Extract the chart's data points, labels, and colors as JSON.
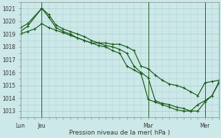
{
  "background_color": "#cce8e8",
  "grid_color": "#aacccc",
  "line_color": "#1a5c1a",
  "xlabel": "Pression niveau de la mer( hPa )",
  "ylim": [
    1012.5,
    1021.5
  ],
  "yticks": [
    1013,
    1014,
    1015,
    1016,
    1017,
    1018,
    1019,
    1020,
    1021
  ],
  "xtick_labels": [
    "Lun",
    "Jeu",
    "Mar",
    "Mer"
  ],
  "xtick_positions": [
    0,
    3,
    18,
    26
  ],
  "series1_x": [
    0,
    1,
    3,
    4,
    5,
    6,
    7,
    8,
    9,
    10,
    11,
    12,
    13,
    14,
    15,
    16,
    17,
    18,
    19,
    20,
    21,
    22,
    23,
    24,
    25,
    26,
    27,
    28
  ],
  "series1_y": [
    1019.5,
    1019.8,
    1021.0,
    1020.5,
    1019.7,
    1019.4,
    1019.2,
    1019.0,
    1018.8,
    1018.5,
    1018.3,
    1018.3,
    1018.2,
    1018.2,
    1018.0,
    1017.7,
    1016.5,
    1016.3,
    1015.8,
    1015.4,
    1015.1,
    1015.0,
    1014.8,
    1014.5,
    1014.2,
    1015.2,
    1015.3,
    1015.4
  ],
  "series2_x": [
    0,
    1,
    3,
    4,
    5,
    6,
    7,
    8,
    9,
    10,
    11,
    12,
    13,
    14,
    15,
    16,
    17,
    18,
    19,
    20,
    21,
    22,
    23,
    24,
    25,
    26,
    27,
    28
  ],
  "series2_y": [
    1019.2,
    1019.6,
    1021.0,
    1020.3,
    1019.5,
    1019.2,
    1019.0,
    1018.7,
    1018.5,
    1018.3,
    1018.3,
    1018.1,
    1018.0,
    1017.8,
    1017.5,
    1016.5,
    1016.0,
    1015.6,
    1013.8,
    1013.6,
    1013.5,
    1013.3,
    1013.2,
    1013.0,
    1013.0,
    1013.7,
    1014.2,
    1015.2
  ],
  "series3_x": [
    0,
    1,
    2,
    3,
    4,
    5,
    6,
    7,
    8,
    9,
    10,
    11,
    12,
    13,
    14,
    15,
    16,
    17,
    18,
    19,
    20,
    21,
    22,
    23,
    24,
    25,
    26,
    27,
    28
  ],
  "series3_y": [
    1019.0,
    1019.2,
    1019.4,
    1019.8,
    1019.5,
    1019.3,
    1019.1,
    1018.9,
    1018.7,
    1018.5,
    1018.3,
    1018.1,
    1018.0,
    1017.7,
    1017.5,
    1016.5,
    1016.2,
    1015.9,
    1013.9,
    1013.7,
    1013.5,
    1013.3,
    1013.1,
    1013.0,
    1013.0,
    1013.5,
    1013.8,
    1014.2,
    1015.3
  ],
  "vlines": [
    3,
    18,
    26
  ],
  "xlim": [
    0,
    28
  ]
}
